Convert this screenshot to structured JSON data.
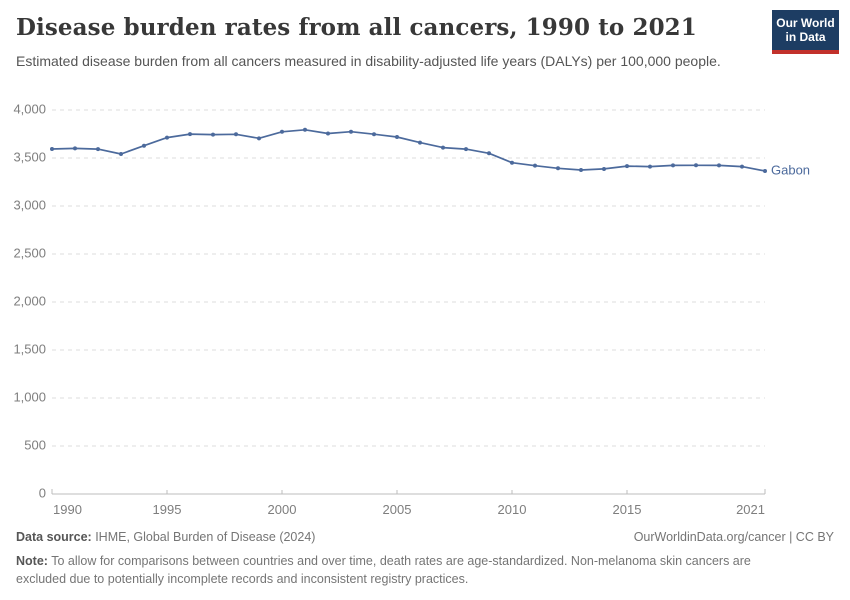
{
  "header": {
    "title": "Disease burden rates from all cancers, 1990 to 2021",
    "subtitle": "Estimated disease burden from all cancers measured in disability-adjusted life years (DALYs) per 100,000 people.",
    "logo": {
      "line1": "Our World",
      "line2": "in Data",
      "bg": "#1d3d63",
      "accent": "#c2312b"
    }
  },
  "chart_data": {
    "type": "line",
    "title": "Disease burden rates from all cancers, 1990 to 2021",
    "subtitle": "Estimated disease burden from all cancers measured in disability-adjusted life years (DALYs) per 100,000 people.",
    "xlabel": "",
    "ylabel": "DALYs per 100,000 people",
    "x": [
      1990,
      1991,
      1992,
      1993,
      1994,
      1995,
      1996,
      1997,
      1998,
      1999,
      2000,
      2001,
      2002,
      2003,
      2004,
      2005,
      2006,
      2007,
      2008,
      2009,
      2010,
      2011,
      2012,
      2013,
      2014,
      2015,
      2016,
      2017,
      2018,
      2019,
      2020,
      2021
    ],
    "series": [
      {
        "name": "Gabon",
        "color": "#4C6A9C",
        "values": [
          3594,
          3600,
          3593,
          3542,
          3628,
          3712,
          3749,
          3744,
          3747,
          3705,
          3773,
          3794,
          3755,
          3774,
          3748,
          3719,
          3660,
          3608,
          3593,
          3549,
          3451,
          3420,
          3393,
          3375,
          3386,
          3416,
          3410,
          3423,
          3424,
          3423,
          3410,
          3365
        ]
      }
    ],
    "ylim": [
      0,
      4000
    ],
    "yticks": [
      {
        "v": 0,
        "label": "0"
      },
      {
        "v": 500,
        "label": "500"
      },
      {
        "v": 1000,
        "label": "1,000"
      },
      {
        "v": 1500,
        "label": "1,500"
      },
      {
        "v": 2000,
        "label": "2,000"
      },
      {
        "v": 2500,
        "label": "2,500"
      },
      {
        "v": 3000,
        "label": "3,000"
      },
      {
        "v": 3500,
        "label": "3,500"
      },
      {
        "v": 4000,
        "label": "4,000"
      }
    ],
    "xticks": [
      {
        "v": 1990,
        "label": "1990",
        "anchor": "start"
      },
      {
        "v": 1995,
        "label": "1995",
        "anchor": "middle"
      },
      {
        "v": 2000,
        "label": "2000",
        "anchor": "middle"
      },
      {
        "v": 2005,
        "label": "2005",
        "anchor": "middle"
      },
      {
        "v": 2010,
        "label": "2010",
        "anchor": "middle"
      },
      {
        "v": 2015,
        "label": "2015",
        "anchor": "middle"
      },
      {
        "v": 2021,
        "label": "2021",
        "anchor": "end"
      }
    ],
    "grid": "horizontal-dashed",
    "legend_position": "end-of-line-label"
  },
  "footer": {
    "source_label": "Data source:",
    "source_text": " IHME, Global Burden of Disease (2024)",
    "link_text": "OurWorldinData.org/cancer | CC BY",
    "note_label": "Note:",
    "note_text": " To allow for comparisons between countries and over time, death rates are age-standardized. Non-melanoma skin cancers are excluded due to potentially incomplete records and inconsistent registry practices."
  },
  "colors": {
    "line": "#4C6A9C",
    "grid": "#dcdcdc",
    "axis": "#bcbcbc",
    "tick_label": "#7e7e7e",
    "title": "#383838",
    "subtitle": "#555555",
    "footer": "#757575"
  }
}
